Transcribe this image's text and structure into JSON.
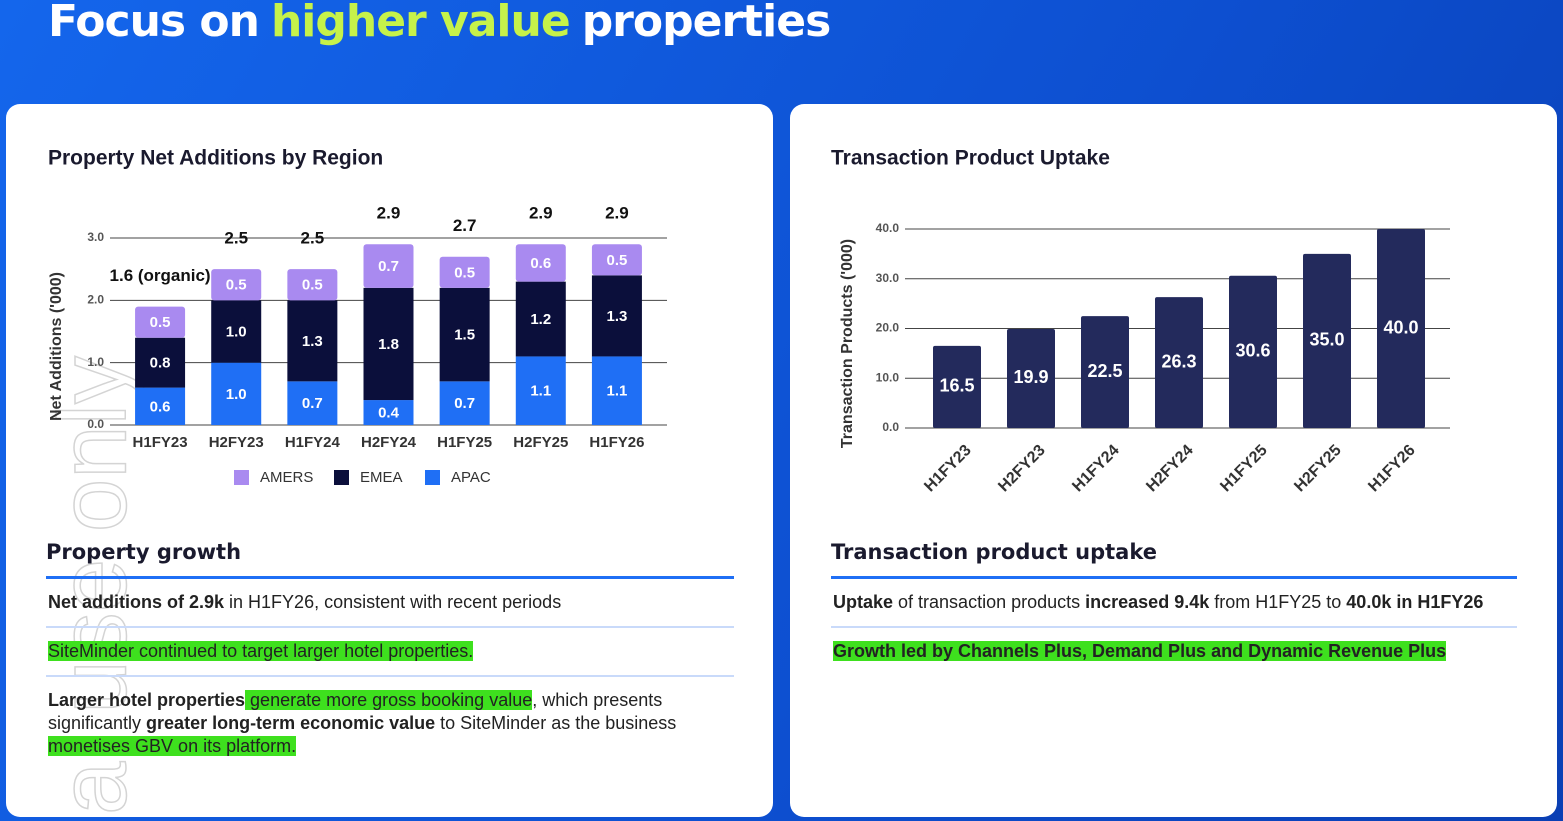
{
  "title_parts": [
    "Focus on",
    "higher value",
    "properties"
  ],
  "watermark": "al use only",
  "chart_data": [
    {
      "type": "stacked_bar",
      "title": "Property Net Additions by Region",
      "y_label": "Net Additions ('000)",
      "categories": [
        "H1FY23",
        "H2FY23",
        "H1FY24",
        "H2FY24",
        "H1FY25",
        "H2FY25",
        "H1FY26"
      ],
      "series": [
        {
          "name": "AMERS",
          "color": "#a98af0",
          "values": [
            0.5,
            0.5,
            0.5,
            0.7,
            0.5,
            0.6,
            0.5
          ],
          "value_labels": [
            "0.5",
            "0.5",
            "0.5",
            "0.7",
            "0.5",
            "0.6",
            "0.5"
          ]
        },
        {
          "name": "EMEA",
          "color": "#0b0f3b",
          "values": [
            0.8,
            1.0,
            1.3,
            1.8,
            1.5,
            1.2,
            1.3
          ],
          "value_labels": [
            "0.8",
            "1.0",
            "1.3",
            "1.8",
            "1.5",
            "1.2",
            "1.3"
          ]
        },
        {
          "name": "APAC",
          "color": "#1f6ff5",
          "values": [
            0.6,
            1.0,
            0.7,
            0.4,
            0.7,
            1.1,
            1.1
          ],
          "value_labels": [
            "0.6",
            "1.0",
            "0.7",
            "0.4",
            "0.7",
            "1.1",
            "1.1"
          ]
        }
      ],
      "total_labels": [
        "1.6 (organic)",
        "2.5",
        "2.5",
        "2.9",
        "2.7",
        "2.9",
        "2.9"
      ],
      "ylim": [
        0,
        3
      ],
      "yticks": [
        {
          "value": 0,
          "label": "0.0"
        },
        {
          "value": 1,
          "label": "1.0"
        },
        {
          "value": 2,
          "label": "2.0"
        },
        {
          "value": 3,
          "label": "3.0"
        }
      ],
      "grid": true,
      "legend": "bottom"
    },
    {
      "type": "bar",
      "title": "Transaction Product Uptake",
      "y_label": "Transaction Products ('000)",
      "categories": [
        "H1FY23",
        "H2FY23",
        "H1FY24",
        "H2FY24",
        "H1FY25",
        "H2FY25",
        "H1FY26"
      ],
      "values": [
        16.5,
        19.9,
        22.5,
        26.3,
        30.6,
        35.0,
        40.0
      ],
      "value_labels": [
        "16.5",
        "19.9",
        "22.5",
        "26.3",
        "30.6",
        "35.0",
        "40.0"
      ],
      "color": "#232a5c",
      "ylim": [
        0,
        40
      ],
      "yticks": [
        {
          "value": 0,
          "label": "0.0"
        },
        {
          "value": 10,
          "label": "10.0"
        },
        {
          "value": 20,
          "label": "20.0"
        },
        {
          "value": 30,
          "label": "30.0"
        },
        {
          "value": 40,
          "label": "40.0"
        }
      ],
      "grid": true
    }
  ],
  "sections": [
    {
      "heading": "Property growth",
      "items": [
        [
          {
            "text": "Net additions of 2.9k",
            "bold": true
          },
          {
            "text": " in H1FY26, consistent with recent periods"
          }
        ],
        [
          {
            "text": "SiteMinder continued to target larger hotel properties.",
            "highlight": true
          }
        ],
        [
          {
            "text": "Larger hotel properties",
            "bold": true
          },
          {
            "text": " generate more gross booking value",
            "highlight": true
          },
          {
            "text": ", which presents significantly "
          },
          {
            "text": "greater long-term economic value",
            "bold": true
          },
          {
            "text": " to SiteMinder as the business"
          },
          {
            "text": " monetises GBV on its platform.",
            "highlight": true
          }
        ]
      ]
    },
    {
      "heading": "Transaction product uptake",
      "items": [
        [
          {
            "text": "Uptake",
            "bold": true
          },
          {
            "text": " of transaction products "
          },
          {
            "text": "increased 9.4k",
            "bold": true
          },
          {
            "text": " from H1FY25 to "
          },
          {
            "text": "40.0k in H1FY26",
            "bold": true
          }
        ],
        [
          {
            "text": "Growth led by Channels Plus, Demand Plus and Dynamic Revenue Plus",
            "bold": true,
            "highlight": true
          }
        ]
      ]
    }
  ]
}
